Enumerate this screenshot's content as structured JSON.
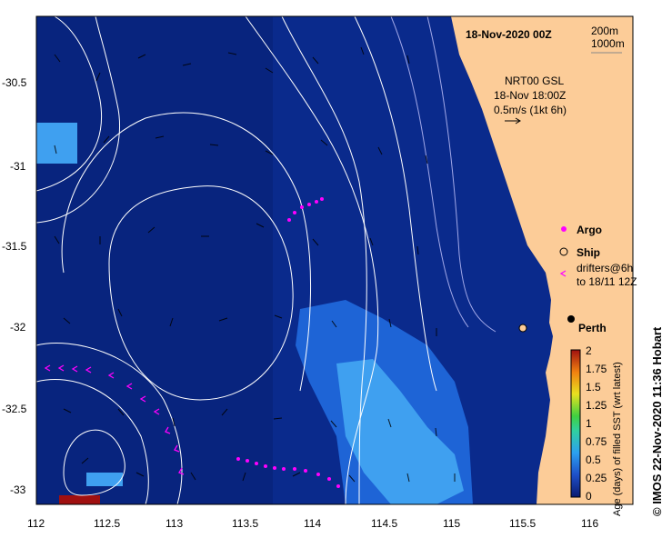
{
  "title": "18-Nov-2020 00Z",
  "depth_contours": [
    "200m",
    "1000m"
  ],
  "current_info": [
    "NRT00 GSL",
    "18-Nov 18:00Z",
    "0.5m/s (1kt 6h)"
  ],
  "legend": {
    "argo": "Argo",
    "ship": "Ship",
    "drifters": [
      "drifters@6h",
      "to 18/11 12Z"
    ]
  },
  "city": "Perth",
  "colorbar": {
    "label": "Age (days) of filled SST (wrt latest)",
    "ticks": [
      "2",
      "1.75",
      "1.5",
      "1.25",
      "1",
      "0.75",
      "0.5",
      "0.25",
      "0"
    ]
  },
  "credit": "© IMOS 22-Nov-2020 11:36 Hobart",
  "axes": {
    "x_ticks": [
      "112",
      "112.5",
      "113",
      "113.5",
      "114",
      "114.5",
      "115",
      "115.5",
      "116"
    ],
    "y_ticks": [
      "-30.5",
      "-31",
      "-31.5",
      "-32",
      "-32.5",
      "-33"
    ]
  },
  "colors": {
    "ocean": "#0a2a8c",
    "ocean_dark": "#08237a",
    "mid_blue": "#1e64d6",
    "light_blue": "#3fa0f0",
    "land": "#fccc98",
    "contour": "#ffffff",
    "argo_track": "#ff00ff"
  }
}
